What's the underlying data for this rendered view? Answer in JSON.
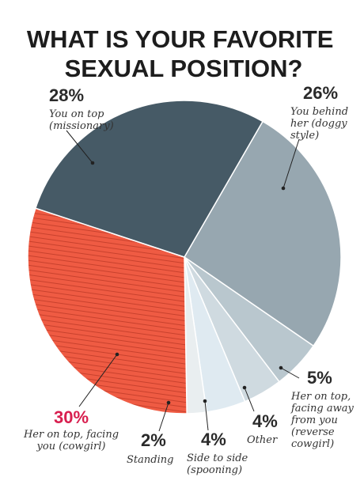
{
  "chart_data": {
    "type": "pie",
    "title_lines": [
      "WHAT IS YOUR FAVORITE",
      "SEXUAL POSITION?"
    ],
    "slices": [
      {
        "value": 26,
        "pct_label": "26%",
        "label_lines": [
          "You behind",
          "her (doggy",
          "style)"
        ],
        "color": "#97a7b0"
      },
      {
        "value": 5,
        "pct_label": "5%",
        "label_lines": [
          "Her on top,",
          "facing away",
          "from you",
          "(reverse",
          "cowgirl)"
        ],
        "color": "#b9c7ce"
      },
      {
        "value": 4,
        "pct_label": "4%",
        "label_lines": [
          "Other"
        ],
        "color": "#cfdae0"
      },
      {
        "value": 4,
        "pct_label": "4%",
        "label_lines": [
          "Side to side",
          "(spooning)"
        ],
        "color": "#dfeaf1"
      },
      {
        "value": 2,
        "pct_label": "2%",
        "label_lines": [
          "Standing"
        ],
        "color": "#e9eef0"
      },
      {
        "value": 30,
        "pct_label": "30%",
        "label_lines": [
          "Her on top, facing",
          "you (cowgirl)"
        ],
        "color": "#ef5b43",
        "pct_color": "#d81f4f",
        "hatched": true
      },
      {
        "value": 28,
        "pct_label": "28%",
        "label_lines": [
          "You on top",
          "(missionary)"
        ],
        "color": "#465a66"
      }
    ]
  }
}
